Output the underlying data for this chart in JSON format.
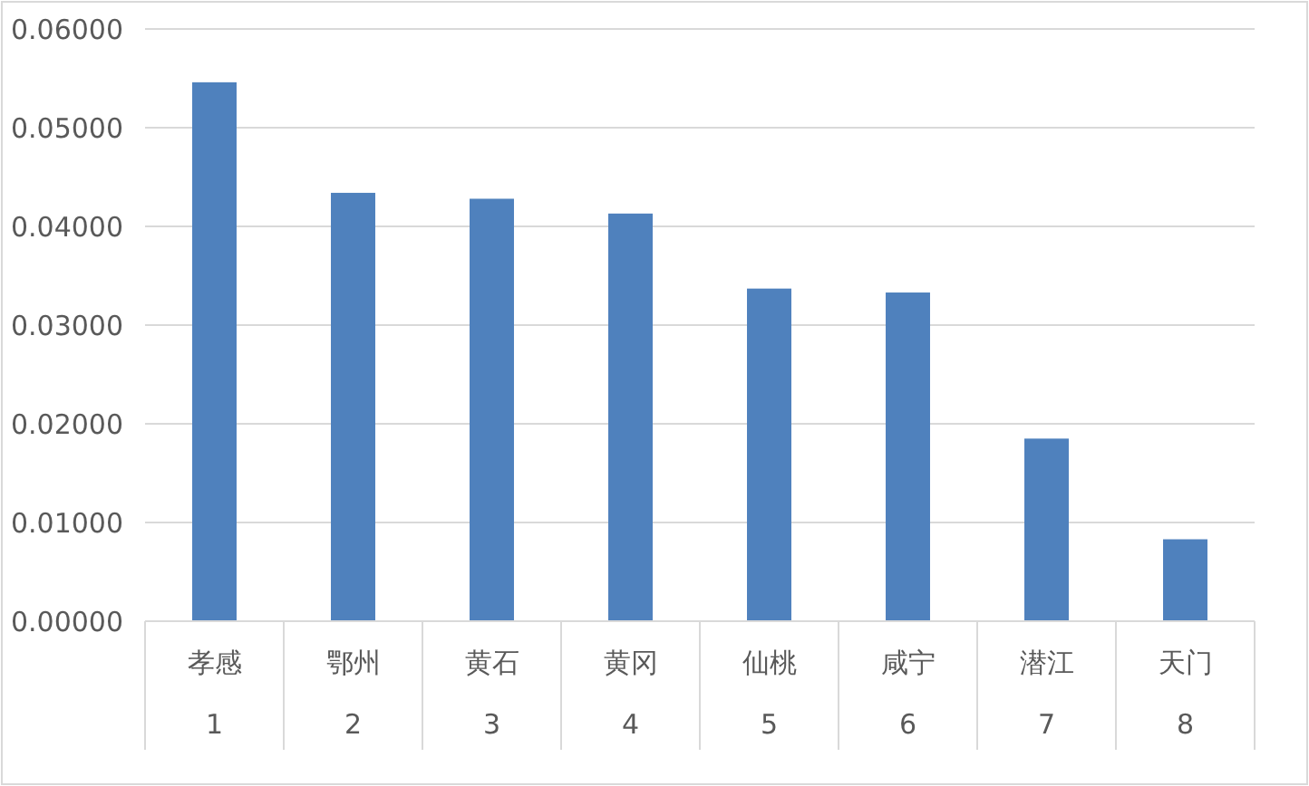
{
  "chart_data": {
    "type": "bar",
    "categories": [
      "孝感\n1",
      "鄂州\n2",
      "黄石\n3",
      "黄冈\n4",
      "仙桃\n5",
      "咸宁\n6",
      "潜江\n7",
      "天门\n8"
    ],
    "values": [
      0.0546,
      0.0434,
      0.0428,
      0.0413,
      0.0337,
      0.0333,
      0.0185,
      0.0083
    ],
    "color": "#4f81bd",
    "ylim": [
      0,
      0.06
    ],
    "yticks": [
      {
        "value": 0,
        "label": "0.00000"
      },
      {
        "value": 0.01,
        "label": "0.01000"
      },
      {
        "value": 0.02,
        "label": "0.02000"
      },
      {
        "value": 0.03,
        "label": "0.03000"
      },
      {
        "value": 0.04,
        "label": "0.04000"
      },
      {
        "value": 0.05,
        "label": "0.05000"
      },
      {
        "value": 0.06,
        "label": "0.06000"
      }
    ],
    "grid": "y"
  }
}
